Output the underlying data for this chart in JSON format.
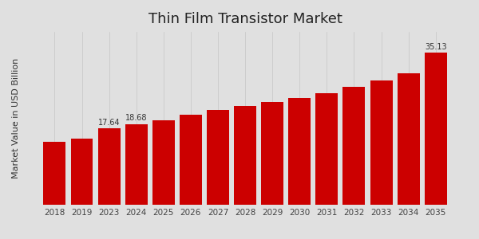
{
  "title": "Thin Film Transistor Market",
  "ylabel": "Market Value in USD Billion",
  "categories": [
    "2018",
    "2019",
    "2023",
    "2024",
    "2025",
    "2026",
    "2027",
    "2028",
    "2029",
    "2030",
    "2031",
    "2032",
    "2033",
    "2034",
    "2035"
  ],
  "values": [
    14.5,
    15.2,
    17.64,
    18.68,
    19.6,
    20.8,
    21.9,
    22.8,
    23.7,
    24.7,
    25.8,
    27.2,
    28.8,
    30.5,
    35.13
  ],
  "bar_color": "#cc0000",
  "label_indices": [
    2,
    3,
    14
  ],
  "label_values": [
    "17.64",
    "18.68",
    "35.13"
  ],
  "background_top": "#e8e8e8",
  "background_bottom": "#d0d0d0",
  "title_fontsize": 13,
  "ylabel_fontsize": 8,
  "tick_fontsize": 7.5,
  "ylim": [
    0,
    40
  ],
  "bottom_bar_color": "#aa0000",
  "bottom_bar_height": 0.025
}
